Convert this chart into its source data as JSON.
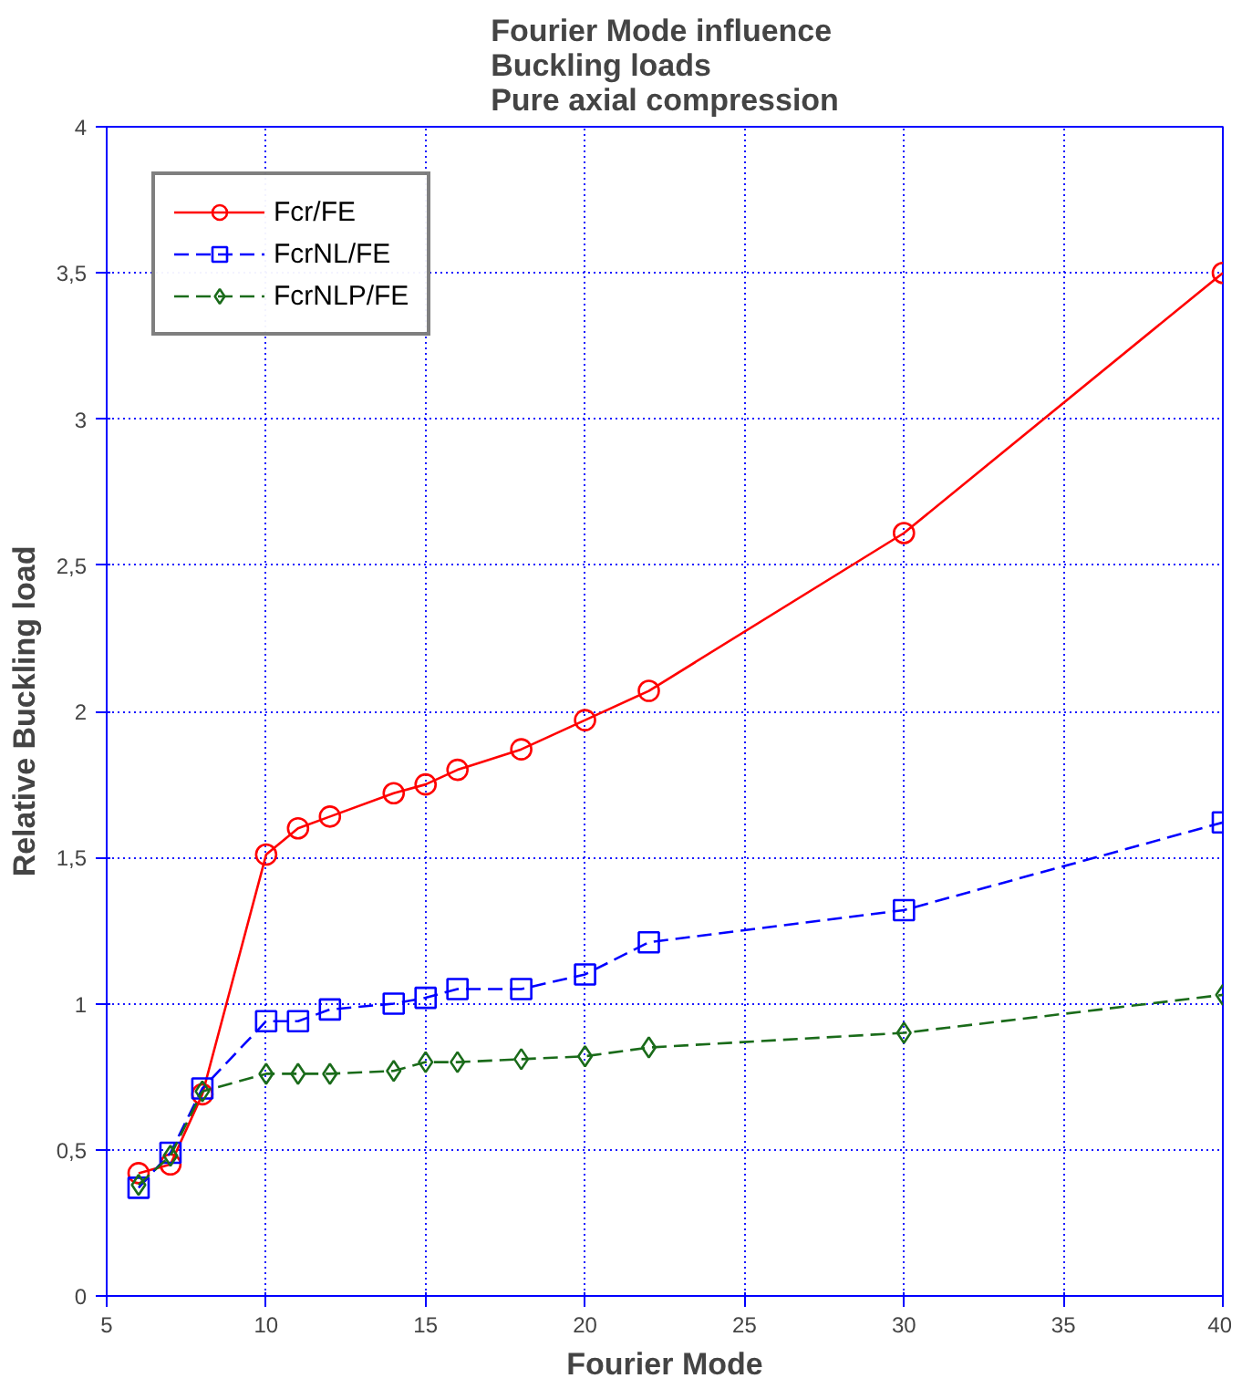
{
  "chart_data": {
    "type": "line",
    "title": "Fourier Mode influence\nBuckling loads\nPure axial compression",
    "xlabel": "Fourier Mode",
    "ylabel": "Relative Buckling load",
    "x": [
      6,
      7,
      8,
      10,
      11,
      12,
      14,
      15,
      16,
      18,
      20,
      22,
      30,
      40
    ],
    "series": [
      {
        "name": "Fcr/FE",
        "color": "#ff0000",
        "marker": "circle",
        "line_style": "solid",
        "values": [
          0.42,
          0.45,
          0.69,
          1.51,
          1.6,
          1.64,
          1.72,
          1.75,
          1.8,
          1.87,
          1.97,
          2.07,
          2.61,
          3.5
        ]
      },
      {
        "name": "FcrNL/FE",
        "color": "#0000ff",
        "marker": "square",
        "line_style": "dashed",
        "values": [
          0.37,
          0.49,
          0.71,
          0.94,
          0.94,
          0.98,
          1.0,
          1.02,
          1.05,
          1.05,
          1.1,
          1.21,
          1.32,
          1.62
        ]
      },
      {
        "name": "FcrNLP/FE",
        "color": "#1a6b1a",
        "marker": "diamond",
        "line_style": "dashed",
        "values": [
          0.38,
          0.48,
          0.7,
          0.76,
          0.76,
          0.76,
          0.77,
          0.8,
          0.8,
          0.81,
          0.82,
          0.85,
          0.9,
          1.03
        ]
      }
    ],
    "xlim": [
      5,
      40
    ],
    "xticks": [
      5,
      10,
      15,
      20,
      25,
      30,
      35,
      40
    ],
    "ylim": [
      0,
      4
    ],
    "yticks": [
      0,
      {
        "value": 0.5,
        "label": "0,5"
      },
      1,
      {
        "value": 1.5,
        "label": "1,5"
      },
      2,
      {
        "value": 2.5,
        "label": "2,5"
      },
      3,
      {
        "value": 3.5,
        "label": "3,5"
      },
      4
    ],
    "grid": true,
    "legend": "top left"
  }
}
